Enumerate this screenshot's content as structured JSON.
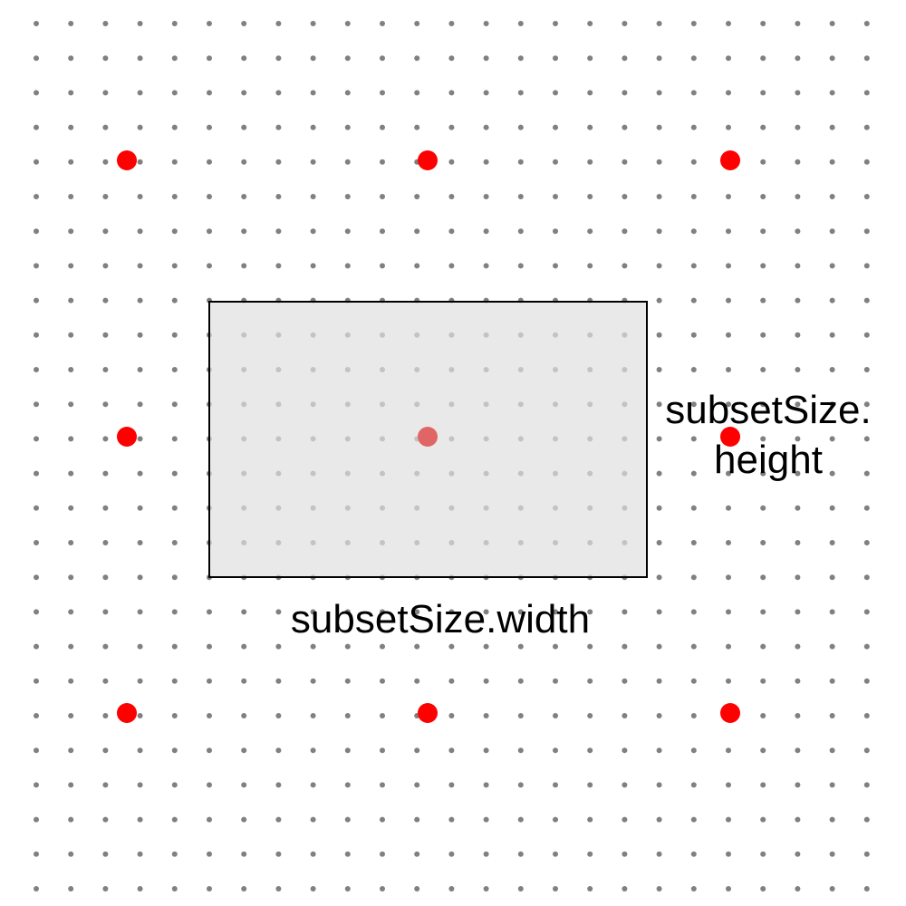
{
  "labels": {
    "width": "subsetSize.width",
    "height_line1": "subsetSize.",
    "height_line2": "height"
  },
  "colors": {
    "grid_dot": "#808080",
    "sample_point": "#ff0000",
    "sample_point_covered": "#e06666",
    "subset_fill": "#e0e0e0",
    "subset_stroke": "#000000"
  }
}
